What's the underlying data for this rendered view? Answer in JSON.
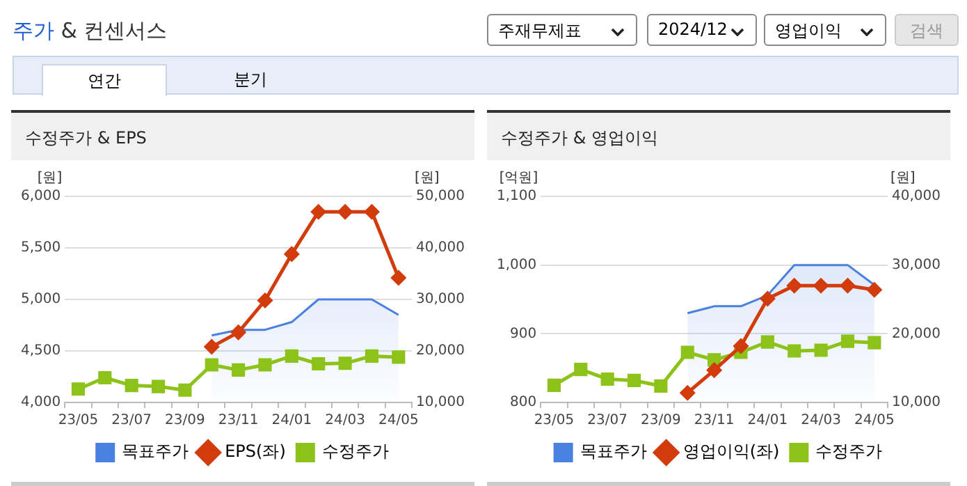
{
  "chart_data": [
    {
      "type": "other",
      "title": "주가 & 컨센서스",
      "annotations": [
        "주재무제표",
        "2024/12",
        "영업이익",
        "검색",
        "연간",
        "분기"
      ]
    },
    {
      "type": "line",
      "title": "수정주가 & EPS",
      "ylabel": "[원]",
      "y2label": "[원]",
      "categories": [
        "23/05",
        null,
        "23/07",
        null,
        "23/09",
        null,
        "23/11",
        null,
        "24/01",
        null,
        "24/03",
        null,
        "24/05"
      ],
      "series": [
        {
          "name": "목표주가",
          "type": "area",
          "axis": "y2",
          "color": "#4a80e0",
          "marker": "none",
          "values": [
            null,
            null,
            null,
            null,
            null,
            23000,
            24100,
            24100,
            25600,
            30000,
            30000,
            30000,
            27000
          ]
        },
        {
          "name": "EPS(좌)",
          "type": "line",
          "axis": "y",
          "color": "#d23c0c",
          "marker": "diamond",
          "values": [
            null,
            null,
            null,
            null,
            null,
            4540,
            4680,
            4990,
            5440,
            5850,
            5850,
            5850,
            5210
          ]
        },
        {
          "name": "수정주가",
          "type": "line",
          "axis": "y2",
          "color": "#8cc21a",
          "marker": "square",
          "values": [
            12600,
            14800,
            13300,
            13100,
            12400,
            17300,
            16300,
            17300,
            19000,
            17500,
            17600,
            19000,
            18800
          ]
        }
      ],
      "ylim": [
        4000,
        6000
      ],
      "yticks": [
        {
          "value": 4000,
          "label": "4,000"
        },
        {
          "value": 4500,
          "label": "4,500"
        },
        {
          "value": 5000,
          "label": "5,000"
        },
        {
          "value": 5500,
          "label": "5,500"
        },
        {
          "value": 6000,
          "label": "6,000"
        }
      ],
      "y2lim": [
        10000,
        50000
      ],
      "y2ticks": [
        {
          "value": 10000,
          "label": "10,000"
        },
        {
          "value": 20000,
          "label": "20,000"
        },
        {
          "value": 30000,
          "label": "30,000"
        },
        {
          "value": 40000,
          "label": "40,000"
        },
        {
          "value": 50000,
          "label": "50,000"
        }
      ],
      "grid": "y",
      "legend": "bottom"
    },
    {
      "type": "line",
      "title": "수정주가 & 영업이익",
      "ylabel": "[억원]",
      "y2label": "[원]",
      "categories": [
        "23/05",
        null,
        "23/07",
        null,
        "23/09",
        null,
        "23/11",
        null,
        "24/01",
        null,
        "24/03",
        null,
        "24/05"
      ],
      "series": [
        {
          "name": "목표주가",
          "type": "area",
          "axis": "y2",
          "color": "#4a80e0",
          "marker": "none",
          "values": [
            null,
            null,
            null,
            null,
            null,
            23000,
            24000,
            24000,
            25600,
            30000,
            30000,
            30000,
            27100
          ]
        },
        {
          "name": "영업이익(좌)",
          "type": "line",
          "axis": "y",
          "color": "#d23c0c",
          "marker": "diamond",
          "values": [
            null,
            null,
            null,
            null,
            null,
            814,
            847,
            882,
            951,
            970,
            970,
            970,
            964
          ]
        },
        {
          "name": "수정주가",
          "type": "line",
          "axis": "y2",
          "color": "#8cc21a",
          "marker": "square",
          "values": [
            12500,
            14800,
            13400,
            13200,
            12400,
            17300,
            16200,
            17300,
            18800,
            17500,
            17600,
            18900,
            18700
          ]
        }
      ],
      "ylim": [
        800,
        1100
      ],
      "yticks": [
        {
          "value": 800,
          "label": "800"
        },
        {
          "value": 900,
          "label": "900"
        },
        {
          "value": 1000,
          "label": "1,000"
        },
        {
          "value": 1100,
          "label": "1,100"
        }
      ],
      "y2lim": [
        10000,
        40000
      ],
      "y2ticks": [
        {
          "value": 10000,
          "label": "10,000"
        },
        {
          "value": 20000,
          "label": "20,000"
        },
        {
          "value": 30000,
          "label": "30,000"
        },
        {
          "value": 40000,
          "label": "40,000"
        }
      ],
      "grid": "y",
      "legend": "bottom"
    }
  ]
}
